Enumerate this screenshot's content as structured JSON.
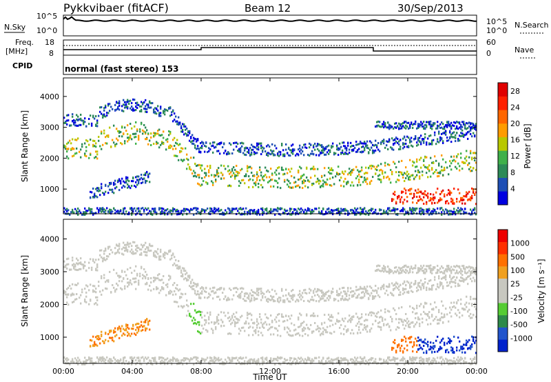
{
  "header": {
    "station": "Pykkvibaer (fitACF)",
    "beam": "Beam 12",
    "date": "30/Sep/2013"
  },
  "strips": {
    "nsky_label": "N.Sky",
    "nsearch_label": "N.Search",
    "counts_ticks": [
      "10^5",
      "10^0"
    ],
    "freq_label_1": "Freq.",
    "freq_label_2": "[MHz]",
    "freq_ticks": [
      "18",
      "8"
    ],
    "nave_label": "Nave",
    "nave_ticks": [
      "60",
      "0"
    ],
    "cpid_label": "CPID",
    "cpid_value": "normal (fast stereo) 153"
  },
  "colors": {
    "power": [
      "#0000e0",
      "#1e4fb5",
      "#2c8a57",
      "#3fb04a",
      "#b8c800",
      "#ff9c00",
      "#ff6600",
      "#ff2000",
      "#e00000"
    ],
    "velocity": [
      "#0022cc",
      "#2255cc",
      "#2e8a4a",
      "#55cc33",
      "#c8c8c0",
      "#c8c8c0",
      "#f0a020",
      "#ff7000",
      "#ff3000",
      "#ee0000"
    ]
  },
  "chart_data": [
    {
      "type": "heatmap",
      "name": "power",
      "ylabel": "Slant Range [km]",
      "yticks": [
        1000,
        2000,
        3000,
        4000
      ],
      "ylim": [
        200,
        4600
      ],
      "xlim": [
        0,
        24
      ],
      "colorbar_label": "Power [dB]",
      "colorbar_ticks": [
        4,
        8,
        12,
        16,
        20,
        24,
        28
      ],
      "colorbar_range": [
        0,
        30
      ]
    },
    {
      "type": "heatmap",
      "name": "velocity",
      "ylabel": "Slant Range [km]",
      "yticks": [
        1000,
        2000,
        3000,
        4000
      ],
      "ylim": [
        200,
        4600
      ],
      "xlim": [
        0,
        24
      ],
      "xlabel": "Time UT",
      "xtick_labels": [
        "00:00",
        "04:00",
        "08:00",
        "12:00",
        "16:00",
        "20:00",
        "00:00"
      ],
      "xtick_hours": [
        0,
        4,
        8,
        12,
        16,
        20,
        24
      ],
      "colorbar_label": "Velocity [m s⁻¹]",
      "colorbar_ticks": [
        "1000",
        "500",
        "100",
        "25",
        "-25",
        "-100",
        "-500",
        "-1000"
      ]
    }
  ]
}
